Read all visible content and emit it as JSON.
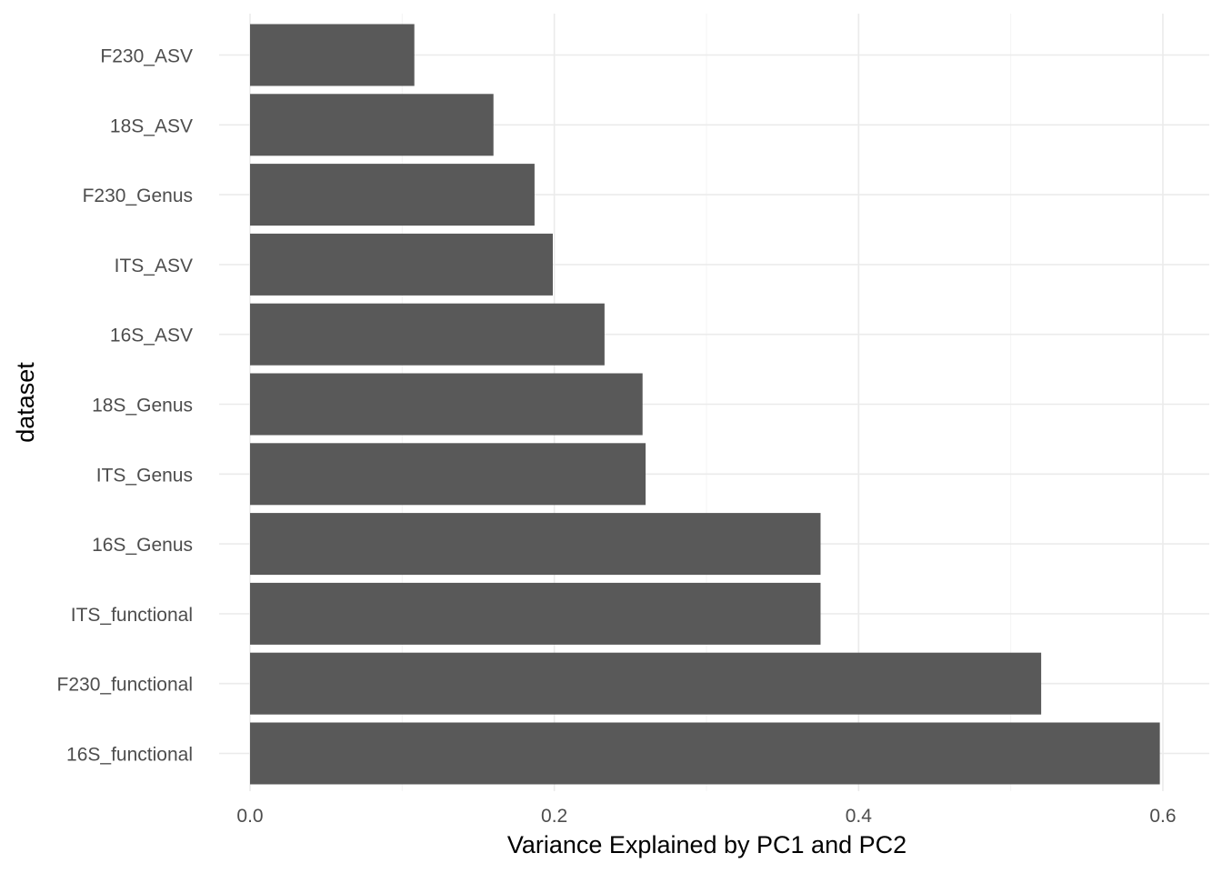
{
  "chart_data": {
    "type": "bar",
    "orientation": "horizontal",
    "categories": [
      "F230_ASV",
      "18S_ASV",
      "F230_Genus",
      "ITS_ASV",
      "16S_ASV",
      "18S_Genus",
      "ITS_Genus",
      "16S_Genus",
      "ITS_functional",
      "F230_functional",
      "16S_functional"
    ],
    "values": [
      0.108,
      0.16,
      0.187,
      0.199,
      0.233,
      0.258,
      0.26,
      0.375,
      0.375,
      0.52,
      0.598
    ],
    "xlabel": "Variance Explained by PC1 and PC2",
    "ylabel": "dataset",
    "xlim": [
      0,
      0.625
    ],
    "x_ticks": [
      "0.0",
      "0.2",
      "0.4",
      "0.6"
    ],
    "x_tick_values": [
      0,
      0.2,
      0.4,
      0.6
    ],
    "grid": true,
    "theme": "minimal",
    "bar_color": "#595959"
  }
}
